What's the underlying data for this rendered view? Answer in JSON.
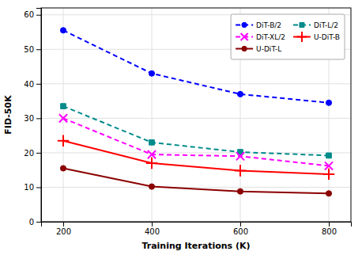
{
  "chart_data": {
    "type": "line",
    "x": [
      200,
      400,
      600,
      800
    ],
    "series": [
      {
        "name": "DiT-B/2",
        "color": "#0000FF",
        "line_style": "dashed",
        "marker": "circle",
        "values": [
          55.5,
          43.0,
          37.0,
          34.5
        ]
      },
      {
        "name": "DiT-L/2",
        "color": "#008B8B",
        "line_style": "dashed",
        "marker": "square",
        "values": [
          33.5,
          23.0,
          20.2,
          19.2
        ]
      },
      {
        "name": "DiT-XL/2",
        "color": "#FF00FF",
        "line_style": "dashed",
        "marker": "x",
        "values": [
          30.0,
          19.5,
          19.0,
          16.2
        ]
      },
      {
        "name": "U-DiT-B",
        "color": "#FF0000",
        "line_style": "solid",
        "marker": "plus",
        "values": [
          23.5,
          17.0,
          14.8,
          13.8
        ]
      },
      {
        "name": "U-DiT-L",
        "color": "#8B0000",
        "line_style": "solid",
        "marker": "circle",
        "values": [
          15.5,
          10.2,
          8.8,
          8.2
        ]
      }
    ],
    "xlabel": "Training Iterations (K)",
    "ylabel": "FID-50K",
    "xlim": [
      150,
      850
    ],
    "ylim": [
      0,
      62
    ],
    "xticks": [
      200,
      400,
      600,
      800
    ],
    "yticks": [
      0,
      10,
      20,
      30,
      40,
      50,
      60
    ],
    "grid": true,
    "legend": "upper right"
  }
}
